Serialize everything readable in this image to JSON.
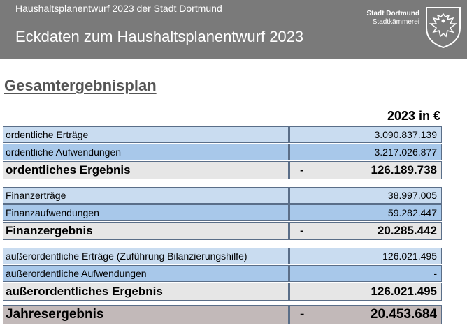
{
  "header": {
    "supertitle": "Haushaltsplanentwurf 2023 der Stadt Dortmund",
    "title": "Eckdaten zum Haushaltsplanentwurf 2023",
    "org_name": "Stadt Dortmund",
    "org_dept": "Stadtkämmerei",
    "crest_icon": "eagle-crest-icon"
  },
  "section_title": "Gesamtergebnisplan",
  "column_header": "2023 in €",
  "rows": [
    {
      "label": "ordentliche Erträge",
      "sign": "",
      "value": "3.090.837.139"
    },
    {
      "label": "ordentliche Aufwendungen",
      "sign": "",
      "value": "3.217.026.877"
    },
    {
      "label": "ordentliches Ergebnis",
      "sign": "-",
      "value": "126.189.738"
    },
    {
      "label": "Finanzerträge",
      "sign": "",
      "value": "38.997.005"
    },
    {
      "label": "Finanzaufwendungen",
      "sign": "",
      "value": "59.282.447"
    },
    {
      "label": "Finanzergebnis",
      "sign": "-",
      "value": "20.285.442"
    },
    {
      "label": "außerordentliche Erträge (Zuführung Bilanzierungshilfe)",
      "sign": "",
      "value": "126.021.495"
    },
    {
      "label": "außerordentliche Aufwendungen",
      "sign": "",
      "value": "-"
    },
    {
      "label": "außerordentliches Ergebnis",
      "sign": "",
      "value": "126.021.495"
    },
    {
      "label": "Jahresergebnis",
      "sign": "-",
      "value": "20.453.684"
    }
  ],
  "colors": {
    "header_bg": "#7a7a7a",
    "row_light": "#c9dcf0",
    "row_mid": "#a8c8ea",
    "row_total": "#e6e6e6",
    "row_year": "#c2b9b9"
  }
}
